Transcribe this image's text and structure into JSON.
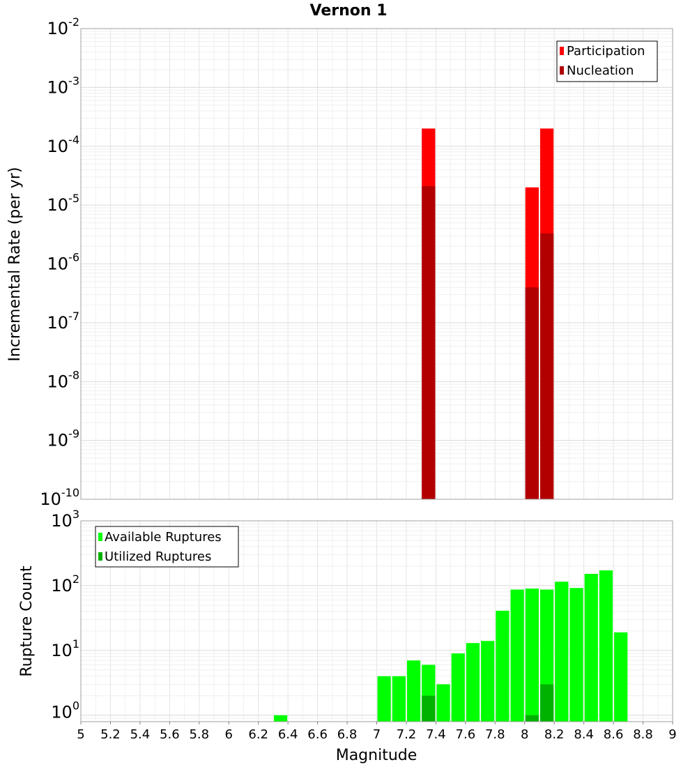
{
  "title": "Vernon 1",
  "colors": {
    "participation": "#ff0000",
    "nucleation": "#b20000",
    "available": "#00ff00",
    "utilized": "#00b200"
  },
  "chart_data": [
    {
      "type": "bar",
      "ylabel": "Incremental Rate (per yr)",
      "xlabel": "",
      "xlim": [
        5,
        9
      ],
      "bin_width": 0.1,
      "y_scale": "log",
      "ylim_exponents": [
        -10,
        -2
      ],
      "y_ticks": [
        {
          "base": "10",
          "exp": "-2"
        },
        {
          "base": "10",
          "exp": "-3"
        },
        {
          "base": "10",
          "exp": "-4"
        },
        {
          "base": "10",
          "exp": "-5"
        },
        {
          "base": "10",
          "exp": "-6"
        },
        {
          "base": "10",
          "exp": "-7"
        },
        {
          "base": "10",
          "exp": "-8"
        },
        {
          "base": "10",
          "exp": "-9"
        },
        {
          "base": "10",
          "exp": "-10"
        }
      ],
      "grid": true,
      "legend_position": "top-right",
      "series": [
        {
          "name": "Participation",
          "x": [
            7.35,
            8.05,
            8.15
          ],
          "values": [
            0.0002,
            2e-05,
            0.0002
          ]
        },
        {
          "name": "Nucleation",
          "x": [
            7.35,
            8.05,
            8.15
          ],
          "values": [
            2.1e-05,
            4e-07,
            3.3e-06
          ]
        }
      ]
    },
    {
      "type": "bar",
      "ylabel": "Rupture Count",
      "xlabel": "Magnitude",
      "xlim": [
        5,
        9
      ],
      "bin_width": 0.1,
      "y_scale": "log",
      "ylim_exponents": [
        -0.1,
        3
      ],
      "y_ticks": [
        {
          "base": "10",
          "exp": "3"
        },
        {
          "base": "10",
          "exp": "2"
        },
        {
          "base": "10",
          "exp": "1"
        },
        {
          "base": "10",
          "exp": "0"
        }
      ],
      "x_ticks": [
        "5",
        "5.2",
        "5.4",
        "5.6",
        "5.8",
        "6",
        "6.2",
        "6.4",
        "6.6",
        "6.8",
        "7",
        "7.2",
        "7.4",
        "7.6",
        "7.8",
        "8",
        "8.2",
        "8.4",
        "8.6",
        "8.8",
        "9"
      ],
      "grid": true,
      "legend_position": "top-left",
      "series": [
        {
          "name": "Available Ruptures",
          "x": [
            6.35,
            7.05,
            7.15,
            7.25,
            7.35,
            7.45,
            7.55,
            7.65,
            7.75,
            7.85,
            7.95,
            8.05,
            8.15,
            8.25,
            8.35,
            8.45,
            8.55,
            8.65
          ],
          "values": [
            1,
            4,
            4,
            7,
            6,
            3,
            9,
            13,
            14,
            41,
            87,
            90,
            87,
            115,
            92,
            152,
            172,
            19
          ]
        },
        {
          "name": "Utilized Ruptures",
          "x": [
            7.35,
            8.05,
            8.15
          ],
          "values": [
            2,
            1,
            3
          ]
        }
      ]
    }
  ]
}
